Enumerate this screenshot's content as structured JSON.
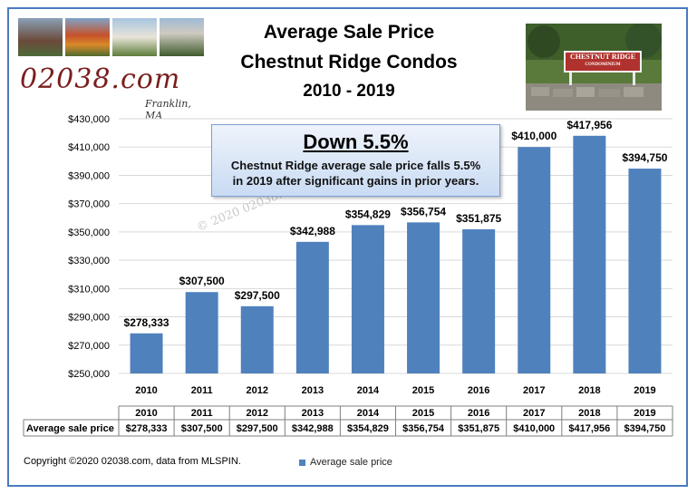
{
  "header": {
    "title_line1": "Average Sale Price",
    "title_line2": "Chestnut Ridge Condos",
    "title_line3": "2010 - 2019"
  },
  "logo": {
    "text": "02038.com",
    "subtext": "Franklin, MA"
  },
  "sign_photo": {
    "sign_text": "CHESTNUT RIDGE",
    "sign_subtext": "CONDOMINIUM"
  },
  "callout": {
    "headline": "Down 5.5%",
    "body_line1": "Chestnut Ridge average sale price falls 5.5%",
    "body_line2": "in 2019 after significant gains in prior years."
  },
  "watermark": "© 2020 02038.com",
  "footer": {
    "copyright": "Copyright ©2020 02038.com, data from MLSPIN."
  },
  "colors": {
    "bar": "#4f81bd",
    "frame": "#4a7bbf",
    "grid": "#d9d9d9"
  },
  "chart_data": {
    "type": "bar",
    "categories": [
      "2010",
      "2011",
      "2012",
      "2013",
      "2014",
      "2015",
      "2016",
      "2017",
      "2018",
      "2019"
    ],
    "series": [
      {
        "name": "Average sale price",
        "values": [
          278333,
          307500,
          297500,
          342988,
          354829,
          356754,
          351875,
          410000,
          417956,
          394750
        ],
        "labels": [
          "$278,333",
          "$307,500",
          "$297,500",
          "$342,988",
          "$354,829",
          "$356,754",
          "$351,875",
          "$410,000",
          "$417,956",
          "$394,750"
        ]
      }
    ],
    "ylim": [
      250000,
      430000
    ],
    "yticks": [
      "$250,000",
      "$270,000",
      "$290,000",
      "$310,000",
      "$330,000",
      "$350,000",
      "$370,000",
      "$390,000",
      "$410,000",
      "$430,000"
    ],
    "ytick_values": [
      250000,
      270000,
      290000,
      310000,
      330000,
      350000,
      370000,
      390000,
      410000,
      430000
    ],
    "grid": true,
    "legend": "bottom",
    "data_table": true
  }
}
